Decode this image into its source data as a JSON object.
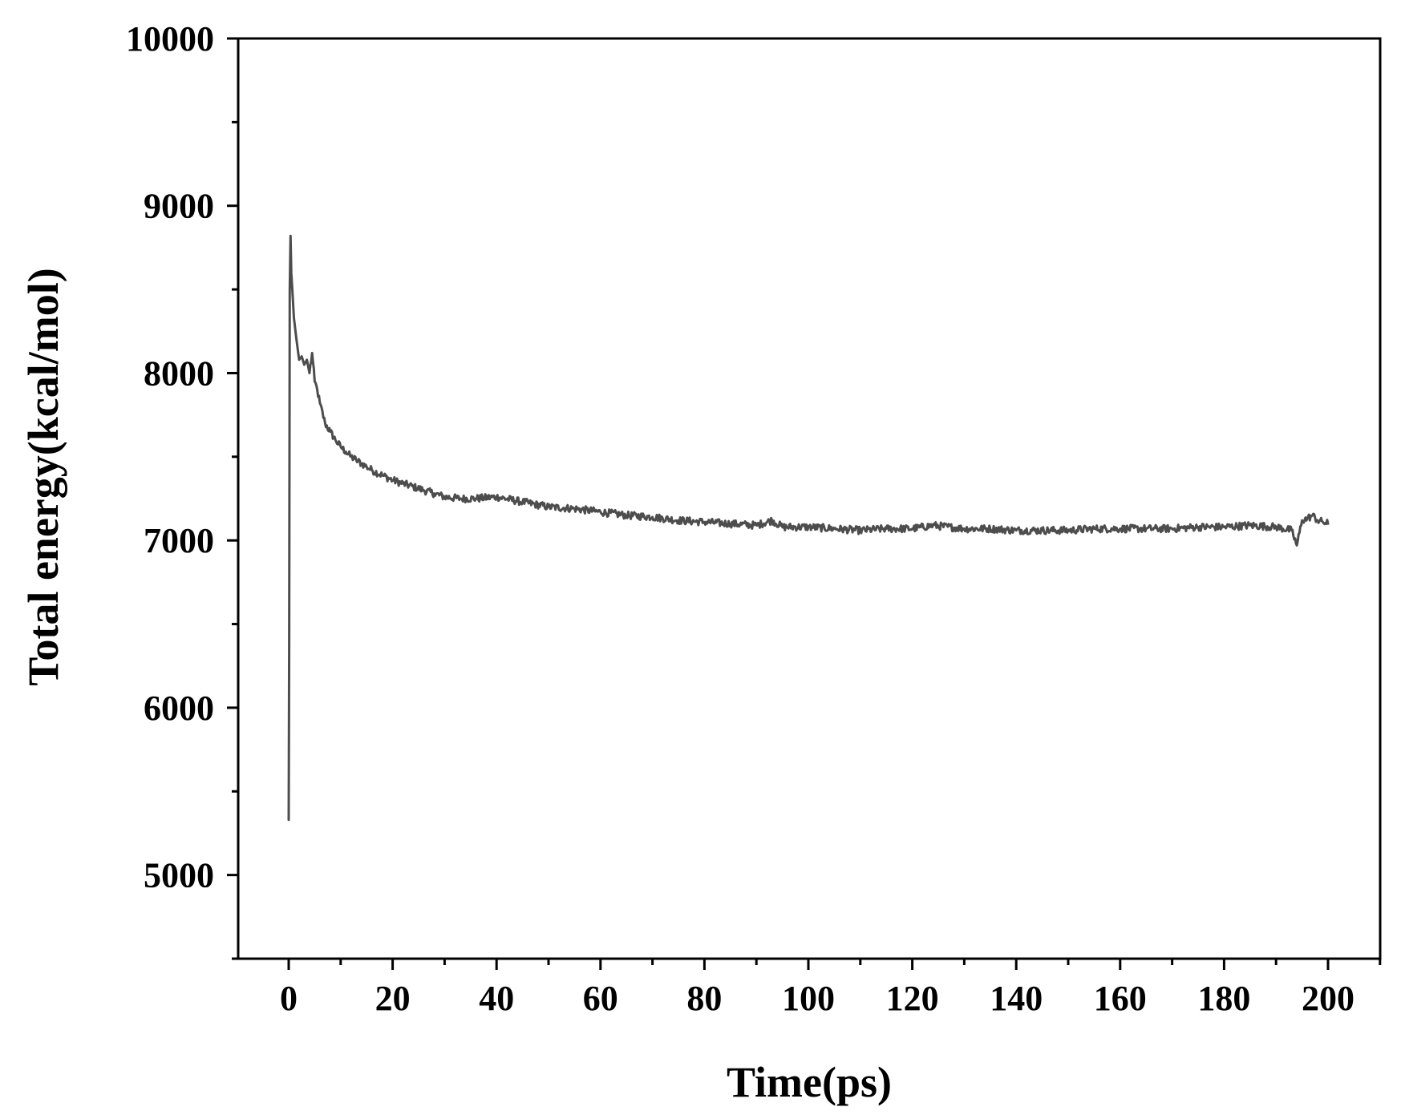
{
  "chart_data": {
    "type": "line",
    "title": "",
    "xlabel": "Time(ps)",
    "ylabel": "Total energy(kcal/mol)",
    "xlim": [
      -10,
      210
    ],
    "ylim": [
      4500,
      10000
    ],
    "x_ticks": [
      0,
      20,
      40,
      60,
      80,
      100,
      120,
      140,
      160,
      180,
      200
    ],
    "x_tick_labels": [
      "0",
      "20",
      "40",
      "60",
      "80",
      "100",
      "120",
      "140",
      "160",
      "180",
      "200"
    ],
    "x_minor_step": 10,
    "y_ticks": [
      5000,
      6000,
      7000,
      8000,
      9000,
      10000
    ],
    "y_tick_labels": [
      "5000",
      "6000",
      "7000",
      "8000",
      "9000",
      "10000"
    ],
    "y_minor_step": 500,
    "grid": false,
    "legend": "none",
    "line_color": "#4d4d4d",
    "axis_color": "#000000",
    "series": [
      {
        "x": [
          0.0,
          0.1,
          0.2,
          0.35,
          0.5,
          0.7,
          1.0,
          1.5,
          2.0,
          2.5,
          3.0,
          3.5,
          4.0,
          4.5,
          5.0,
          5.5,
          6.0,
          7.0,
          8.0,
          9.0,
          10.0,
          11.0,
          12.0,
          13.0,
          14.0,
          15.0,
          16.0,
          18.0,
          20.0,
          22.0,
          24.0,
          26.0,
          28.0,
          30.0,
          33.0,
          36.0,
          40.0,
          45.0,
          50.0,
          55.0,
          60.0,
          65.0,
          70.0,
          75.0,
          80.0,
          85.0,
          90.0,
          93.0,
          95.0,
          100.0,
          105.0,
          110.0,
          115.0,
          120.0,
          124.0,
          130.0,
          135.0,
          140.0,
          145.0,
          150.0,
          155.0,
          160.0,
          165.0,
          170.0,
          175.0,
          180.0,
          185.0,
          190.0,
          193.0,
          194.0,
          195.0,
          196.0,
          197.0,
          198.0,
          199.0,
          200.0
        ],
        "y": [
          5330,
          6400,
          8500,
          8820,
          8600,
          8500,
          8330,
          8200,
          8080,
          8100,
          8050,
          8080,
          8000,
          8120,
          7950,
          7900,
          7820,
          7700,
          7650,
          7600,
          7560,
          7530,
          7500,
          7480,
          7460,
          7440,
          7420,
          7390,
          7360,
          7340,
          7320,
          7300,
          7280,
          7260,
          7250,
          7250,
          7260,
          7230,
          7200,
          7190,
          7170,
          7150,
          7140,
          7120,
          7110,
          7100,
          7090,
          7120,
          7080,
          7080,
          7070,
          7060,
          7070,
          7070,
          7090,
          7070,
          7070,
          7060,
          7060,
          7060,
          7070,
          7070,
          7070,
          7070,
          7080,
          7080,
          7090,
          7080,
          7060,
          6970,
          7120,
          7130,
          7150,
          7120,
          7110,
          7100
        ]
      }
    ]
  }
}
